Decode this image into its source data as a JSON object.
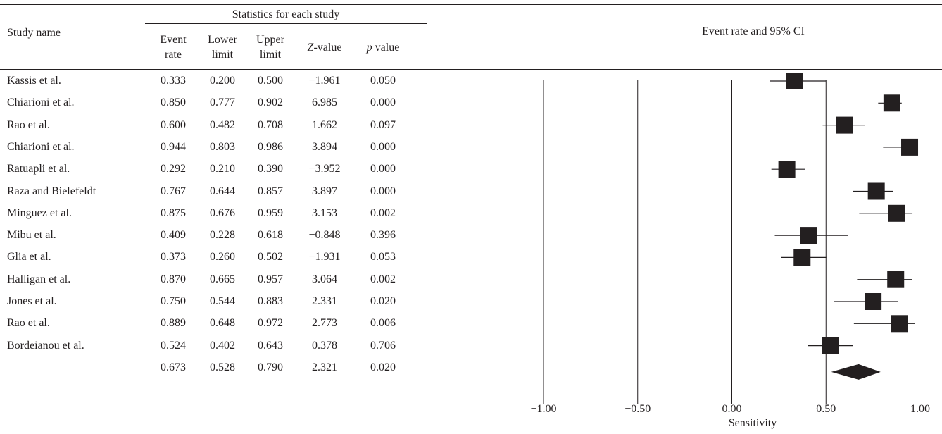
{
  "header": {
    "group_title": "Statistics for each study",
    "study_col": "Study name",
    "event_rate": "Event rate",
    "lower_limit": "Lower limit",
    "upper_limit": "Upper limit",
    "z_value": "Z-value",
    "p_value": "p value",
    "plot_title": "Event rate and 95% CI"
  },
  "rows": [
    {
      "name": "Kassis et al.",
      "event_rate": "0.333",
      "lower": "0.200",
      "upper": "0.500",
      "z": "−1.961",
      "p": "0.050"
    },
    {
      "name": "Chiarioni et al.",
      "event_rate": "0.850",
      "lower": "0.777",
      "upper": "0.902",
      "z": "6.985",
      "p": "0.000"
    },
    {
      "name": "Rao et al.",
      "event_rate": "0.600",
      "lower": "0.482",
      "upper": "0.708",
      "z": "1.662",
      "p": "0.097"
    },
    {
      "name": "Chiarioni et al.",
      "event_rate": "0.944",
      "lower": "0.803",
      "upper": "0.986",
      "z": "3.894",
      "p": "0.000"
    },
    {
      "name": "Ratuapli et al.",
      "event_rate": "0.292",
      "lower": "0.210",
      "upper": "0.390",
      "z": "−3.952",
      "p": "0.000"
    },
    {
      "name": "Raza and Bielefeldt",
      "event_rate": "0.767",
      "lower": "0.644",
      "upper": "0.857",
      "z": "3.897",
      "p": "0.000"
    },
    {
      "name": "Minguez et al.",
      "event_rate": "0.875",
      "lower": "0.676",
      "upper": "0.959",
      "z": "3.153",
      "p": "0.002"
    },
    {
      "name": "Mibu et al.",
      "event_rate": "0.409",
      "lower": "0.228",
      "upper": "0.618",
      "z": "−0.848",
      "p": "0.396"
    },
    {
      "name": "Glia et al.",
      "event_rate": "0.373",
      "lower": "0.260",
      "upper": "0.502",
      "z": "−1.931",
      "p": "0.053"
    },
    {
      "name": "Halligan et al.",
      "event_rate": "0.870",
      "lower": "0.665",
      "upper": "0.957",
      "z": "3.064",
      "p": "0.002"
    },
    {
      "name": "Jones et al.",
      "event_rate": "0.750",
      "lower": "0.544",
      "upper": "0.883",
      "z": "2.331",
      "p": "0.020"
    },
    {
      "name": "Rao et al.",
      "event_rate": "0.889",
      "lower": "0.648",
      "upper": "0.972",
      "z": "2.773",
      "p": "0.006"
    },
    {
      "name": "Bordeianou et al.",
      "event_rate": "0.524",
      "lower": "0.402",
      "upper": "0.643",
      "z": "0.378",
      "p": "0.706"
    },
    {
      "name": "",
      "event_rate": "0.673",
      "lower": "0.528",
      "upper": "0.790",
      "z": "2.321",
      "p": "0.020"
    }
  ],
  "chart_data": {
    "type": "forest",
    "title": "Event rate and 95% CI",
    "xlabel": "Sensitivity",
    "xlim": [
      -1.0,
      1.0
    ],
    "x_ticks": [
      "−1.00",
      "−0.50",
      "0.00",
      "0.50",
      "1.00"
    ],
    "x_tick_values": [
      -1.0,
      -0.5,
      0.0,
      0.5,
      1.0
    ],
    "studies": [
      {
        "name": "Kassis et al.",
        "estimate": 0.333,
        "lower": 0.2,
        "upper": 0.5
      },
      {
        "name": "Chiarioni et al.",
        "estimate": 0.85,
        "lower": 0.777,
        "upper": 0.902
      },
      {
        "name": "Rao et al.",
        "estimate": 0.6,
        "lower": 0.482,
        "upper": 0.708
      },
      {
        "name": "Chiarioni et al.",
        "estimate": 0.944,
        "lower": 0.803,
        "upper": 0.986
      },
      {
        "name": "Ratuapli et al.",
        "estimate": 0.292,
        "lower": 0.21,
        "upper": 0.39
      },
      {
        "name": "Raza and Bielefeldt",
        "estimate": 0.767,
        "lower": 0.644,
        "upper": 0.857
      },
      {
        "name": "Minguez et al.",
        "estimate": 0.875,
        "lower": 0.676,
        "upper": 0.959
      },
      {
        "name": "Mibu et al.",
        "estimate": 0.409,
        "lower": 0.228,
        "upper": 0.618
      },
      {
        "name": "Glia et al.",
        "estimate": 0.373,
        "lower": 0.26,
        "upper": 0.502
      },
      {
        "name": "Halligan et al.",
        "estimate": 0.87,
        "lower": 0.665,
        "upper": 0.957
      },
      {
        "name": "Jones et al.",
        "estimate": 0.75,
        "lower": 0.544,
        "upper": 0.883
      },
      {
        "name": "Rao et al.",
        "estimate": 0.889,
        "lower": 0.648,
        "upper": 0.972
      },
      {
        "name": "Bordeianou et al.",
        "estimate": 0.524,
        "lower": 0.402,
        "upper": 0.643
      }
    ],
    "pooled": {
      "estimate": 0.673,
      "lower": 0.528,
      "upper": 0.79
    },
    "grid_lines_at": [
      -0.5,
      0.0,
      0.5
    ],
    "colors": {
      "marker": "#231f20",
      "line": "#231f20"
    }
  }
}
